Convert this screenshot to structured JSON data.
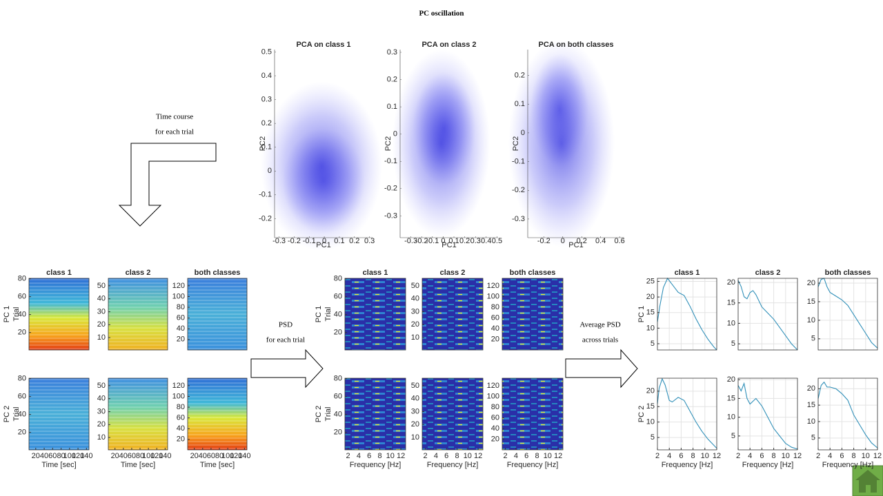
{
  "title": "PC oscillation",
  "arrows": [
    {
      "lines": [
        "Time course",
        "for each trial"
      ]
    },
    {
      "lines": [
        "PSD",
        "for each trial"
      ]
    },
    {
      "lines": [
        "Average PSD",
        "across trials"
      ]
    }
  ],
  "scatter_plots": [
    {
      "title": "PCA on class 1",
      "xlabel": "PC1",
      "ylabel": "PC2",
      "xlim": [
        -0.33,
        0.32
      ],
      "ylim": [
        -0.28,
        0.51
      ],
      "xticks": [
        -0.3,
        -0.2,
        -0.1,
        0,
        0.1,
        0.2,
        0.3
      ],
      "yticks": [
        -0.2,
        -0.1,
        0,
        0.1,
        0.2,
        0.3,
        0.4,
        0.5
      ]
    },
    {
      "title": "PCA on class 2",
      "xlabel": "PC1",
      "ylabel": "PC2",
      "xlim": [
        -0.4,
        0.51
      ],
      "ylim": [
        -0.38,
        0.31
      ],
      "xticks": [
        -0.3,
        -0.2,
        -0.1,
        0,
        0.1,
        0.2,
        0.3,
        0.4,
        0.5
      ],
      "yticks": [
        -0.3,
        -0.2,
        -0.1,
        0,
        0.1,
        0.2,
        0.3
      ]
    },
    {
      "title": "PCA on both classes",
      "xlabel": "PC1",
      "ylabel": "PC2",
      "xlim": [
        -0.37,
        0.65
      ],
      "ylim": [
        -0.365,
        0.29
      ],
      "xticks": [
        -0.2,
        0,
        0.2,
        0.4,
        0.6
      ],
      "yticks": [
        -0.3,
        -0.2,
        -0.1,
        0,
        0.1,
        0.2
      ]
    }
  ],
  "groups": [
    {
      "kind": "time_course",
      "titles": [
        "class 1",
        "class 2",
        "both classes"
      ],
      "row_labels": [
        [
          "PC 1",
          "Trial"
        ],
        [
          "PC 2",
          "Trial"
        ]
      ],
      "xlabel": "Time [sec]",
      "xlim": [
        4,
        146
      ],
      "xticks": [
        20,
        40,
        60,
        80,
        100,
        120,
        140
      ],
      "yaxes": [
        {
          "ylim": [
            0.5,
            80.5
          ],
          "yticks": [
            20,
            40,
            60,
            80
          ]
        },
        {
          "ylim": [
            0.5,
            55.8
          ],
          "yticks": [
            10,
            20,
            30,
            40,
            50
          ]
        },
        {
          "ylim": [
            0.5,
            134
          ],
          "yticks": [
            20,
            40,
            60,
            80,
            100,
            120
          ]
        }
      ]
    },
    {
      "kind": "psd",
      "titles": [
        "class 1",
        "class 2",
        "both classes"
      ],
      "row_labels": [
        [
          "PC 1",
          "Trial"
        ],
        [
          "PC 2",
          "Trial"
        ]
      ],
      "xlabel": "Frequency [Hz]",
      "xlim": [
        1.4,
        12.9
      ],
      "xticks": [
        2,
        4,
        6,
        8,
        10,
        12
      ],
      "yaxes": [
        {
          "ylim": [
            0.5,
            80.5
          ],
          "yticks": [
            20,
            40,
            60,
            80
          ]
        },
        {
          "ylim": [
            0.5,
            55.8
          ],
          "yticks": [
            10,
            20,
            30,
            40,
            50
          ]
        },
        {
          "ylim": [
            0.5,
            134
          ],
          "yticks": [
            20,
            40,
            60,
            80,
            100,
            120
          ]
        }
      ]
    },
    {
      "kind": "average_psd",
      "titles": [
        "class 1",
        "class 2",
        "both classes"
      ],
      "row_labels": [
        [
          "PC 1"
        ],
        [
          "PC 2"
        ]
      ],
      "xlabel": "Frequency [Hz]",
      "xlim": [
        2,
        12
      ],
      "xticks": [
        2,
        4,
        6,
        8,
        10,
        12
      ],
      "plots": [
        [
          {
            "ylim": [
              3,
              26
            ],
            "yticks": [
              5,
              10,
              15,
              20,
              25
            ],
            "x": [
              2,
              2.4,
              3,
              3.7,
              4.5,
              5.5,
              6.5,
              7.5,
              8.5,
              9.5,
              10.5,
              11.5,
              12
            ],
            "values": [
              12,
              17,
              23,
              26,
              24,
              21.5,
              20.5,
              17,
              13,
              9.5,
              6.5,
              4,
              3
            ]
          },
          {
            "ylim": [
              3.5,
              21
            ],
            "yticks": [
              5,
              10,
              15,
              20
            ],
            "x": [
              2,
              2.5,
              3,
              3.5,
              4,
              4.5,
              5,
              6,
              7,
              8,
              9,
              10,
              11,
              12
            ],
            "values": [
              20.5,
              19,
              16.5,
              16,
              17.5,
              18,
              17,
              14,
              12.5,
              11,
              9,
              7,
              5,
              3.5
            ]
          },
          {
            "ylim": [
              2,
              21.3
            ],
            "yticks": [
              5,
              10,
              15,
              20
            ],
            "x": [
              2,
              2.5,
              3,
              3.5,
              4,
              5,
              6,
              7,
              8,
              9,
              10,
              11,
              12
            ],
            "values": [
              19,
              21,
              21.3,
              19,
              17.5,
              16.5,
              15.5,
              14,
              11.5,
              9,
              6.5,
              4,
              2.5
            ]
          }
        ],
        [
          {
            "ylim": [
              1,
              24.2
            ],
            "yticks": [
              5,
              10,
              15,
              20
            ],
            "x": [
              2,
              2.3,
              2.8,
              3.3,
              4,
              4.5,
              5.5,
              6.5,
              7.5,
              8.5,
              9.5,
              10.5,
              11.5,
              12
            ],
            "values": [
              16,
              21,
              24,
              22,
              17,
              16.5,
              18,
              17,
              13.5,
              10,
              7,
              4.5,
              2.5,
              1.5
            ]
          },
          {
            "ylim": [
              1.3,
              20.4
            ],
            "yticks": [
              5,
              10,
              15,
              20
            ],
            "x": [
              2,
              2.5,
              3,
              3.5,
              4,
              5,
              6,
              7,
              8,
              9,
              10,
              11,
              12
            ],
            "values": [
              18.5,
              17,
              19,
              15,
              13.5,
              15,
              13,
              10,
              7,
              5,
              3,
              2,
              1.5
            ]
          },
          {
            "ylim": [
              1.4,
              23.2
            ],
            "yticks": [
              5,
              10,
              15,
              20
            ],
            "x": [
              2,
              2.5,
              3,
              3.5,
              4,
              5,
              6,
              7,
              8,
              9,
              10,
              11,
              12
            ],
            "values": [
              17,
              21,
              22,
              20.5,
              20.5,
              20,
              18.5,
              16.5,
              12,
              9,
              6,
              3.5,
              2
            ]
          }
        ]
      ]
    }
  ]
}
